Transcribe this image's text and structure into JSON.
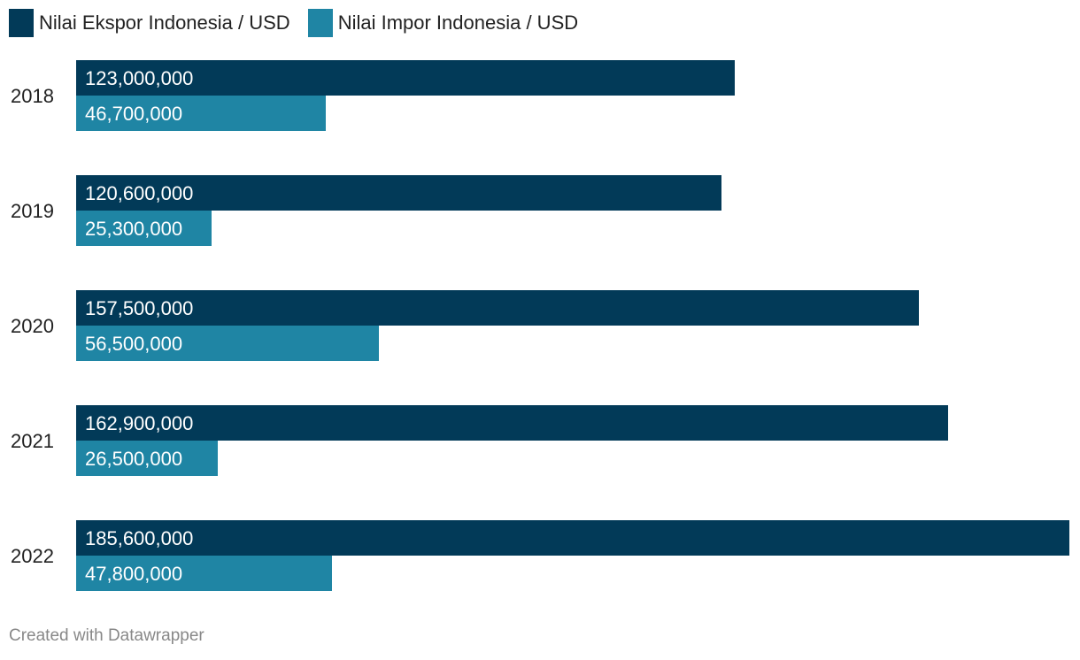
{
  "chart_data": {
    "type": "bar",
    "orientation": "horizontal",
    "categories": [
      "2018",
      "2019",
      "2020",
      "2021",
      "2022"
    ],
    "series": [
      {
        "name": "Nilai Ekspor Indonesia / USD",
        "color": "#023a58",
        "values": [
          123000000,
          120600000,
          157500000,
          162900000,
          185600000
        ],
        "labels": [
          "123,000,000",
          "120,600,000",
          "157,500,000",
          "162,900,000",
          "185,600,000"
        ]
      },
      {
        "name": "Nilai Impor Indonesia / USD",
        "color": "#1f85a4",
        "values": [
          46700000,
          25300000,
          56500000,
          26500000,
          47800000
        ],
        "labels": [
          "46,700,000",
          "25,300,000",
          "56,500,000",
          "26,500,000",
          "47,800,000"
        ]
      }
    ],
    "xlim": [
      0,
      185600000
    ],
    "grid": false,
    "legend": "top-left"
  },
  "credit": "Created with Datawrapper"
}
